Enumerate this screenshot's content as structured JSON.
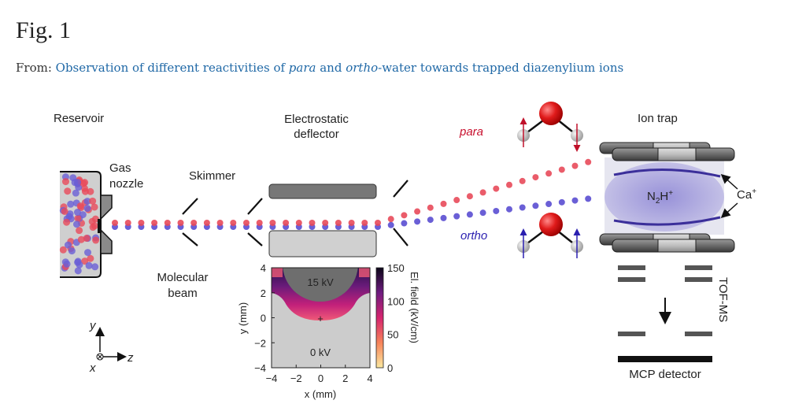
{
  "header": {
    "title": "Fig. 1",
    "from_prefix": "From: ",
    "article_link": {
      "part1": "Observation of different reactivities of ",
      "para": "para",
      "part2": " and ",
      "ortho": "ortho",
      "part3": "-water towards trapped diazenylium ions"
    }
  },
  "figure": {
    "labels": {
      "reservoir": "Reservoir",
      "gas_nozzle_1": "Gas",
      "gas_nozzle_2": "nozzle",
      "skimmer": "Skimmer",
      "molecular_beam_1": "Molecular",
      "molecular_beam_2": "beam",
      "deflector_1": "Electrostatic",
      "deflector_2": "deflector",
      "para": "para",
      "ortho": "ortho",
      "ion_trap": "Ion trap",
      "ion_label": "N2H+",
      "ca_label": "Ca+",
      "tof_ms": "TOF-MS",
      "mcp": "MCP detector",
      "axis_y": "y",
      "axis_z": "z",
      "axis_x": "x"
    },
    "inset": {
      "electrode_high": "15 kV",
      "electrode_low": "0 kV",
      "xlabel": "x (mm)",
      "ylabel": "y (mm)",
      "xticks": [
        "−4",
        "−2",
        "0",
        "2",
        "4"
      ],
      "yticks": [
        "4",
        "2",
        "0",
        "−2",
        "−4"
      ],
      "colorbar_label": "El. field (kV/cm)",
      "colorbar_ticks": [
        "150",
        "100",
        "50",
        "0"
      ]
    },
    "colors": {
      "para": "#e84a5a",
      "ortho": "#6a5fd6",
      "link": "#1f68a6"
    }
  }
}
